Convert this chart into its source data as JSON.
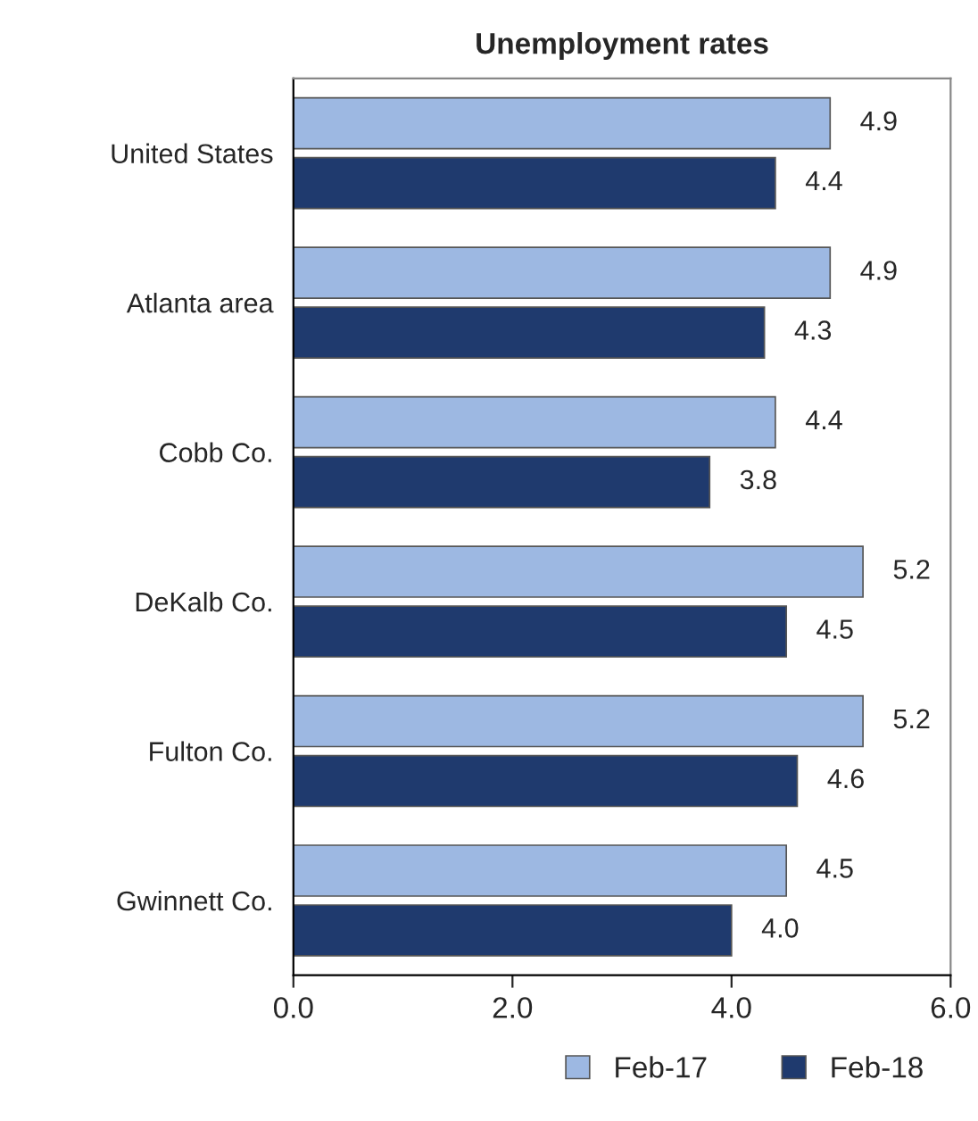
{
  "chart_data": {
    "type": "bar",
    "orientation": "horizontal",
    "title": "Unemployment rates",
    "categories": [
      "United States",
      "Atlanta area",
      "Cobb Co.",
      "DeKalb Co.",
      "Fulton Co.",
      "Gwinnett Co."
    ],
    "series": [
      {
        "name": "Feb-17",
        "color": "#9db8e2",
        "values": [
          4.9,
          4.9,
          4.4,
          5.2,
          5.2,
          4.5
        ],
        "value_labels": [
          "4.9",
          "4.9",
          "4.4",
          "5.2",
          "5.2",
          "4.5"
        ]
      },
      {
        "name": "Feb-18",
        "color": "#1f3a6e",
        "values": [
          4.4,
          4.3,
          3.8,
          4.5,
          4.6,
          4.0
        ],
        "value_labels": [
          "4.4",
          "4.3",
          "3.8",
          "4.5",
          "4.6",
          "4.0"
        ]
      }
    ],
    "xlim": [
      0,
      6
    ],
    "xticks": [
      {
        "value": 0,
        "label": "0.0"
      },
      {
        "value": 2,
        "label": "2.0"
      },
      {
        "value": 4,
        "label": "4.0"
      },
      {
        "value": 6,
        "label": "6.0"
      }
    ],
    "grid": false,
    "legend": "bottom right"
  }
}
